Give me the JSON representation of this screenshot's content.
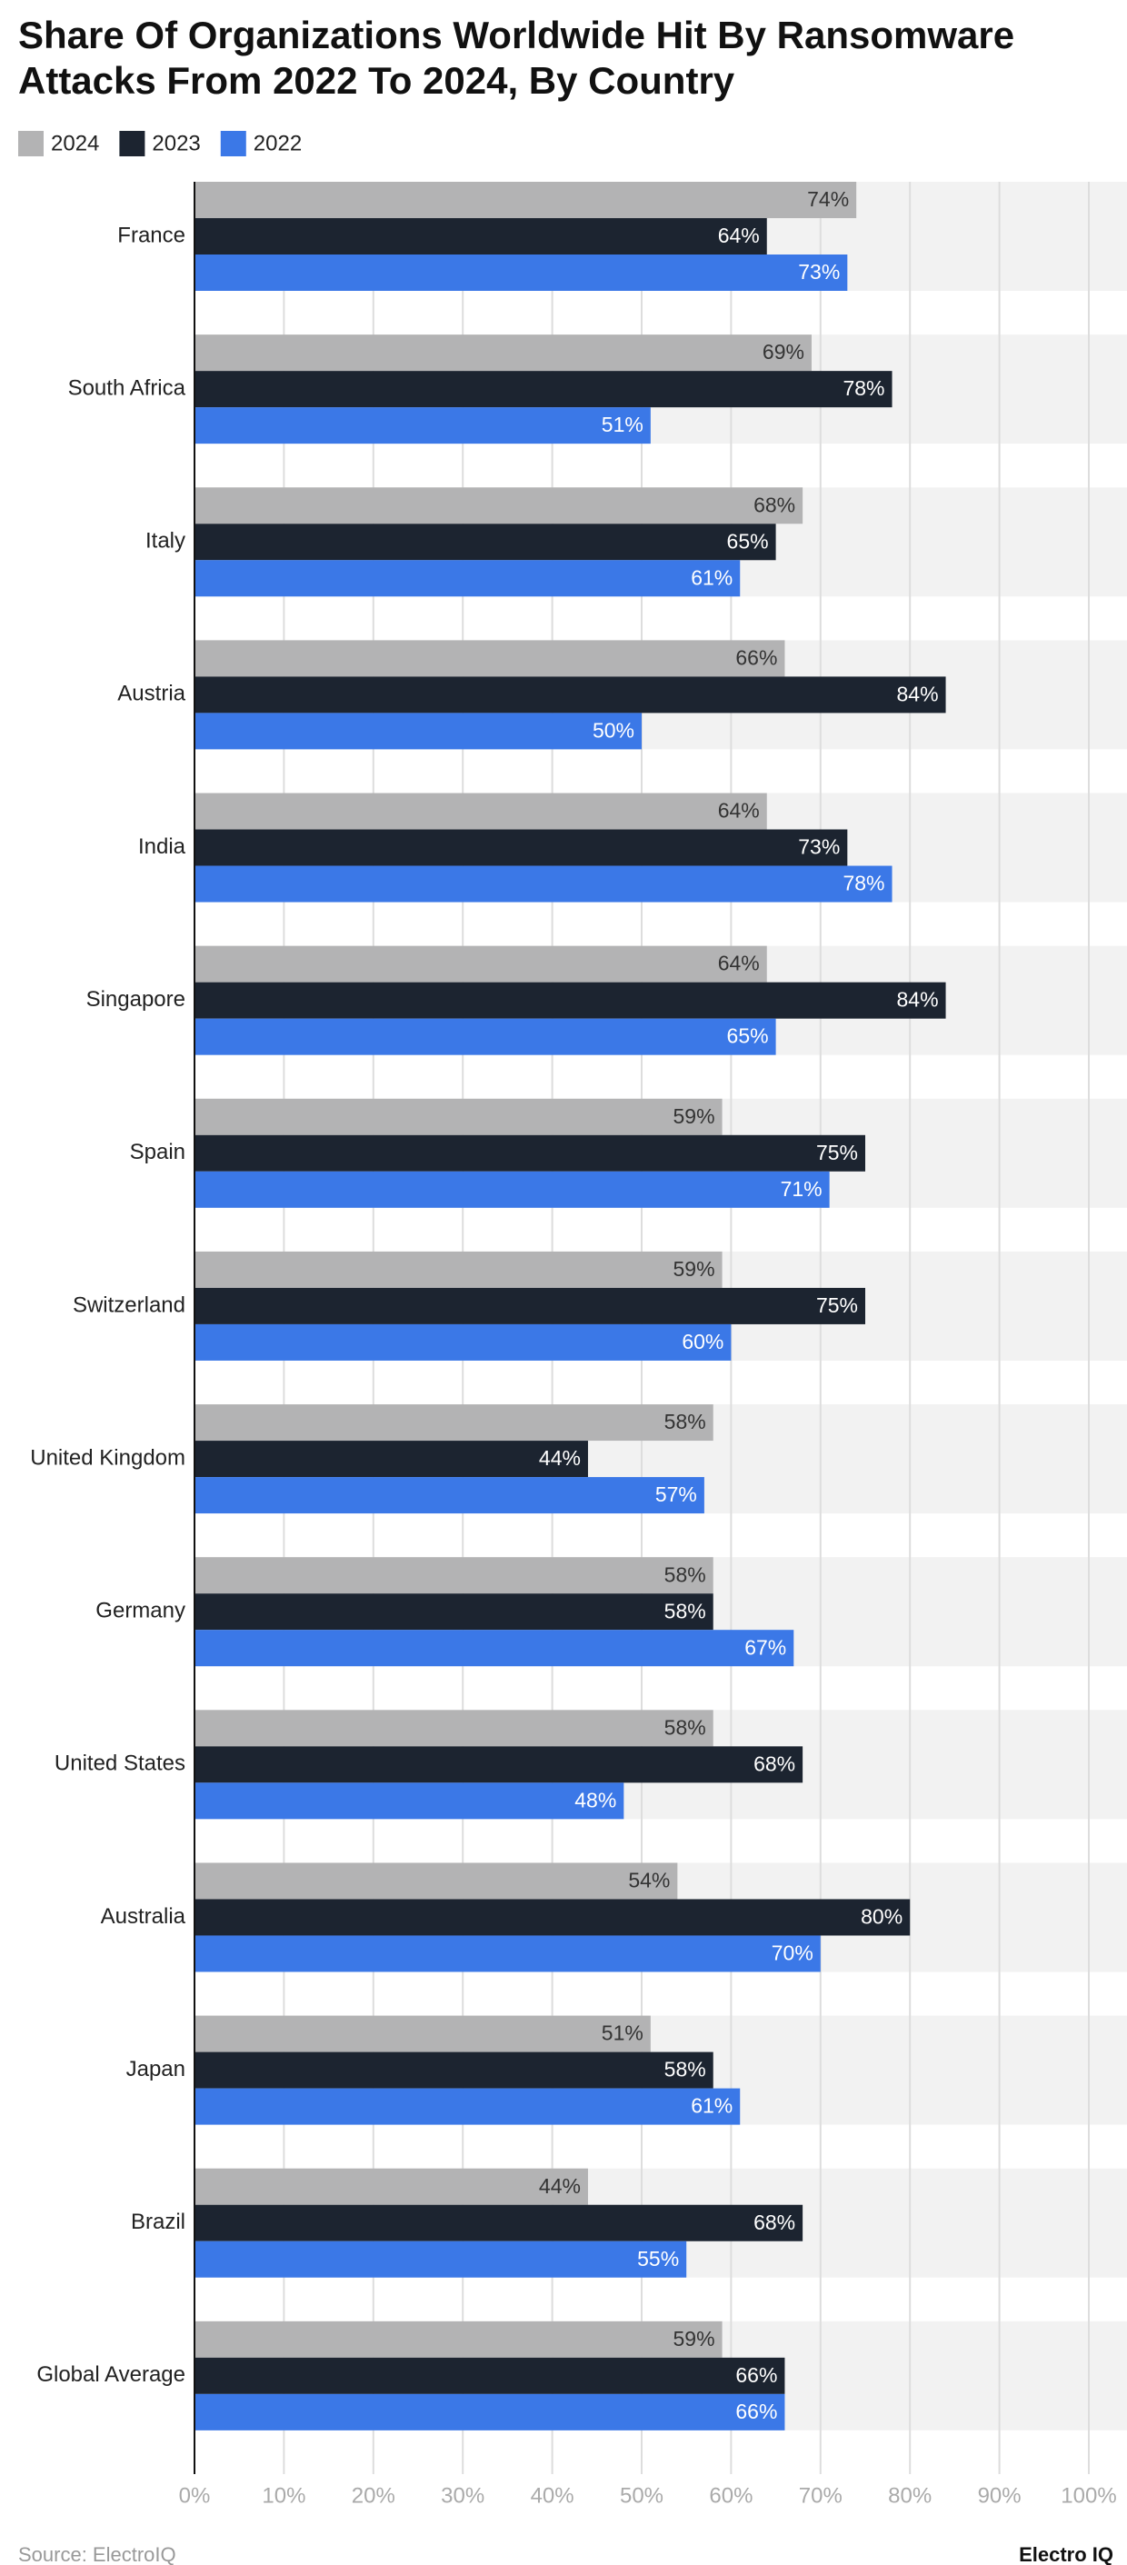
{
  "chart_data": {
    "type": "bar",
    "orientation": "horizontal",
    "title": "Share Of Organizations Worldwide Hit By Ransomware Attacks From 2022 To 2024, By Country",
    "categories": [
      "France",
      "South Africa",
      "Italy",
      "Austria",
      "India",
      "Singapore",
      "Spain",
      "Switzerland",
      "United Kingdom",
      "Germany",
      "United States",
      "Australia",
      "Japan",
      "Brazil",
      "Global Average"
    ],
    "series": [
      {
        "name": "2024",
        "color": "#b3b3b4",
        "label_color": "#333333",
        "values": [
          74,
          69,
          68,
          66,
          64,
          64,
          59,
          59,
          58,
          58,
          58,
          54,
          51,
          44,
          59
        ],
        "value_labels": [
          "74%",
          "69%",
          "68%",
          "66%",
          "64%",
          "64%",
          "59%",
          "59%",
          "58%",
          "58%",
          "58%",
          "54%",
          "51%",
          "44%",
          "59%"
        ]
      },
      {
        "name": "2023",
        "color": "#1c2430",
        "label_color": "#ffffff",
        "values": [
          64,
          78,
          65,
          84,
          73,
          84,
          75,
          75,
          44,
          58,
          68,
          80,
          58,
          68,
          66
        ],
        "value_labels": [
          "64%",
          "78%",
          "65%",
          "84%",
          "73%",
          "84%",
          "75%",
          "75%",
          "44%",
          "58%",
          "68%",
          "80%",
          "58%",
          "68%",
          "66%"
        ]
      },
      {
        "name": "2022",
        "color": "#3b78e7",
        "label_color": "#ffffff",
        "values": [
          73,
          51,
          61,
          50,
          78,
          65,
          71,
          60,
          57,
          67,
          48,
          70,
          61,
          55,
          66
        ],
        "value_labels": [
          "73%",
          "51%",
          "61%",
          "50%",
          "78%",
          "65%",
          "71%",
          "60%",
          "57%",
          "67%",
          "48%",
          "70%",
          "61%",
          "55%",
          "66%"
        ]
      }
    ],
    "xlim": [
      0,
      100
    ],
    "xticks": [
      {
        "value": 0,
        "label": "0%"
      },
      {
        "value": 10,
        "label": "10%"
      },
      {
        "value": 20,
        "label": "20%"
      },
      {
        "value": 30,
        "label": "30%"
      },
      {
        "value": 40,
        "label": "40%"
      },
      {
        "value": 50,
        "label": "50%"
      },
      {
        "value": 60,
        "label": "60%"
      },
      {
        "value": 70,
        "label": "70%"
      },
      {
        "value": 80,
        "label": "80%"
      },
      {
        "value": 90,
        "label": "90%"
      },
      {
        "value": 100,
        "label": "100%"
      }
    ],
    "grid": true,
    "legend": "top-left",
    "source": "Source: ElectroIQ",
    "brand": "Electro IQ"
  }
}
